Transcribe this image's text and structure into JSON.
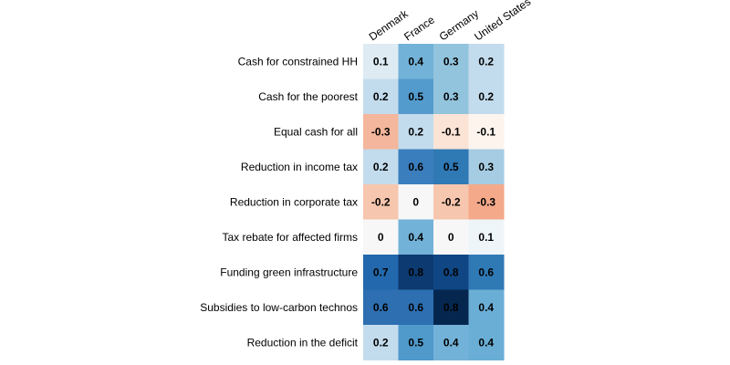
{
  "chart_data": {
    "type": "heatmap",
    "title": "",
    "xlabel": "",
    "ylabel": "",
    "columns": [
      "Denmark",
      "France",
      "Germany",
      "United States"
    ],
    "rows": [
      "Cash for constrained HH",
      "Cash for the poorest",
      "Equal cash for all",
      "Reduction in income tax",
      "Reduction in corporate tax",
      "Tax rebate for affected firms",
      "Funding green infrastructure",
      "Subsidies to low-carbon technos",
      "Reduction in the deficit"
    ],
    "values": [
      [
        0.1,
        0.4,
        0.3,
        0.2
      ],
      [
        0.2,
        0.5,
        0.3,
        0.2
      ],
      [
        -0.3,
        0.2,
        -0.1,
        -0.1
      ],
      [
        0.2,
        0.6,
        0.5,
        0.3
      ],
      [
        -0.2,
        0,
        -0.2,
        -0.3
      ],
      [
        0,
        0.4,
        0,
        0.1
      ],
      [
        0.7,
        0.8,
        0.8,
        0.6
      ],
      [
        0.6,
        0.6,
        0.8,
        0.4
      ],
      [
        0.2,
        0.5,
        0.4,
        0.4
      ]
    ],
    "value_labels": [
      [
        "0.1",
        "0.4",
        "0.3",
        "0.2"
      ],
      [
        "0.2",
        "0.5",
        "0.3",
        "0.2"
      ],
      [
        "-0.3",
        "0.2",
        "-0.1",
        "-0.1"
      ],
      [
        "0.2",
        "0.6",
        "0.5",
        "0.3"
      ],
      [
        "-0.2",
        "0",
        "-0.2",
        "-0.3"
      ],
      [
        "0",
        "0.4",
        "0",
        "0.1"
      ],
      [
        "0.7",
        "0.8",
        "0.8",
        "0.6"
      ],
      [
        "0.6",
        "0.6",
        "0.8",
        "0.4"
      ],
      [
        "0.2",
        "0.5",
        "0.4",
        "0.4"
      ]
    ],
    "cell_colors": [
      [
        "#deebf2",
        "#73b2d8",
        "#93c4de",
        "#c3dced"
      ],
      [
        "#c3dced",
        "#539bcd",
        "#93c4de",
        "#c3dced"
      ],
      [
        "#f4b69c",
        "#c3dced",
        "#fbe4d6",
        "#fef4ee"
      ],
      [
        "#c3dced",
        "#3a7ebd",
        "#2f79b5",
        "#a5cce3"
      ],
      [
        "#f7c6ae",
        "#f7f7f7",
        "#f7c6ae",
        "#f4a98a"
      ],
      [
        "#f7f7f7",
        "#73b2d8",
        "#f7f7f7",
        "#eef5f9"
      ],
      [
        "#2368ac",
        "#0d3a70",
        "#0f4683",
        "#2f79b5"
      ],
      [
        "#2d6fb1",
        "#2d6fb1",
        "#05274f",
        "#6aaed6"
      ],
      [
        "#c3dced",
        "#4f9acb",
        "#73b2d8",
        "#6aaed6"
      ]
    ],
    "color_scale": "diverging red-white-blue, negative red, positive blue",
    "legend": "none",
    "grid": false
  }
}
